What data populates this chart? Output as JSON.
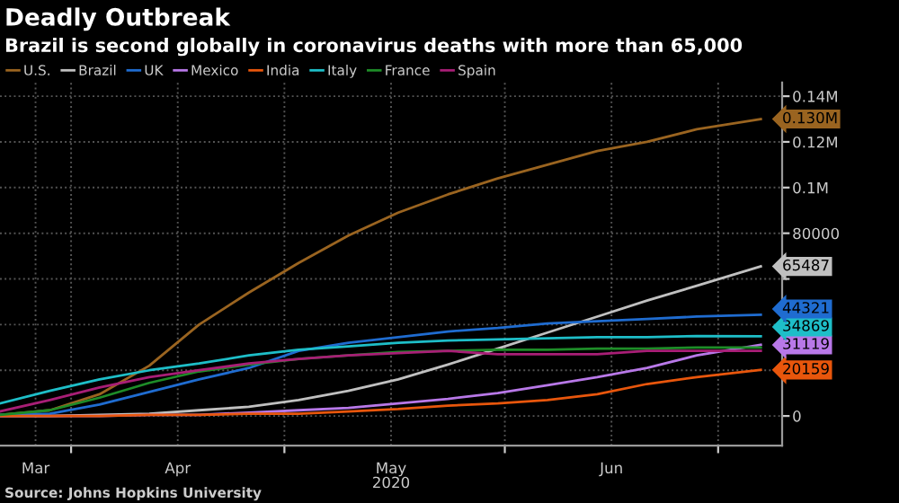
{
  "chart_data": {
    "type": "line",
    "title": "Deadly Outbreak",
    "subtitle": "Brazil is second globally in coronavirus deaths with more than 65,000",
    "xlabel": "2020",
    "annotations": [
      "Source: Johns Hopkins University"
    ],
    "x": [
      "2020-03-22",
      "2020-03-29",
      "2020-04-05",
      "2020-04-12",
      "2020-04-19",
      "2020-04-26",
      "2020-05-03",
      "2020-05-10",
      "2020-05-17",
      "2020-05-24",
      "2020-05-31",
      "2020-06-07",
      "2020-06-14",
      "2020-06-21",
      "2020-06-28",
      "2020-07-07"
    ],
    "series": [
      {
        "name": "U.S.",
        "color": "#9a6420",
        "values": [
          500,
          2500,
          9500,
          22000,
          40000,
          54000,
          67000,
          79000,
          89000,
          97000,
          104000,
          110000,
          116000,
          120000,
          125500,
          130000
        ],
        "value_labels": [
          null,
          null,
          null,
          null,
          null,
          null,
          null,
          null,
          null,
          null,
          null,
          null,
          null,
          null,
          null,
          "0.130M"
        ]
      },
      {
        "name": "Brazil",
        "color": "#c0c0c0",
        "values": [
          0,
          0,
          500,
          1000,
          2500,
          4000,
          7000,
          11000,
          16000,
          22500,
          29500,
          36500,
          43500,
          50500,
          57000,
          65487
        ],
        "value_labels": [
          null,
          null,
          null,
          null,
          null,
          null,
          null,
          null,
          null,
          null,
          null,
          null,
          null,
          null,
          null,
          "65487"
        ]
      },
      {
        "name": "UK",
        "color": "#1f6cd0",
        "values": [
          500,
          1000,
          5000,
          10500,
          16000,
          21000,
          28500,
          32000,
          34500,
          37000,
          38500,
          40500,
          41500,
          42500,
          43500,
          44321
        ],
        "value_labels": [
          null,
          null,
          null,
          null,
          null,
          null,
          null,
          null,
          null,
          null,
          null,
          null,
          null,
          null,
          null,
          "44321"
        ]
      },
      {
        "name": "Mexico",
        "color": "#b878e8",
        "values": [
          0,
          0,
          0,
          500,
          500,
          1500,
          2500,
          3500,
          5500,
          7500,
          10000,
          13500,
          17000,
          21000,
          26500,
          31119
        ],
        "value_labels": [
          null,
          null,
          null,
          null,
          null,
          null,
          null,
          null,
          null,
          null,
          null,
          null,
          null,
          null,
          null,
          "31119"
        ]
      },
      {
        "name": "India",
        "color": "#e8560c",
        "values": [
          0,
          0,
          0,
          500,
          500,
          1000,
          1000,
          2000,
          3000,
          4500,
          5500,
          7000,
          9500,
          14000,
          17000,
          20159
        ],
        "value_labels": [
          null,
          null,
          null,
          null,
          null,
          null,
          null,
          null,
          null,
          null,
          null,
          null,
          null,
          null,
          null,
          "20159"
        ]
      },
      {
        "name": "Italy",
        "color": "#1ebec8",
        "values": [
          5500,
          11000,
          16000,
          20000,
          23000,
          26500,
          29000,
          30500,
          32000,
          33000,
          33500,
          34000,
          34500,
          34500,
          35000,
          34869
        ],
        "value_labels": [
          null,
          null,
          null,
          null,
          null,
          null,
          null,
          null,
          null,
          null,
          null,
          null,
          null,
          null,
          null,
          "34869"
        ]
      },
      {
        "name": "France",
        "color": "#1e8c28",
        "values": [
          500,
          2500,
          8000,
          14500,
          19500,
          22500,
          25000,
          26500,
          28000,
          28500,
          29000,
          29000,
          29500,
          29500,
          30000,
          30000
        ]
      },
      {
        "name": "Spain",
        "color": "#a81e76",
        "values": [
          2000,
          7000,
          12500,
          17000,
          20000,
          23000,
          25000,
          26500,
          27500,
          28500,
          27000,
          27000,
          27000,
          28500,
          28500,
          28500
        ]
      }
    ],
    "xlim": [
      "2020-03-22",
      "2020-07-10"
    ],
    "xticks": [
      {
        "value": "2020-03-27",
        "label": "Mar"
      },
      {
        "value": "2020-04-01",
        "label": null
      },
      {
        "value": "2020-04-16",
        "label": "Apr"
      },
      {
        "value": "2020-05-01",
        "label": null
      },
      {
        "value": "2020-05-16",
        "label": "May"
      },
      {
        "value": "2020-06-01",
        "label": null
      },
      {
        "value": "2020-06-16",
        "label": "Jun"
      },
      {
        "value": "2020-07-01",
        "label": null
      }
    ],
    "ylim": [
      -13000,
      146000
    ],
    "yticks": [
      0,
      {
        "value": 20000,
        "label": null
      },
      {
        "value": 40000,
        "label": null
      },
      {
        "value": 60000,
        "label": null
      },
      80000,
      {
        "value": 100000,
        "label": "0.1M"
      },
      {
        "value": 120000,
        "label": "0.12M"
      },
      {
        "value": 140000,
        "label": "0.14M"
      }
    ],
    "grid": true,
    "legend": "top left",
    "marker": "none",
    "line_style": "solid"
  }
}
